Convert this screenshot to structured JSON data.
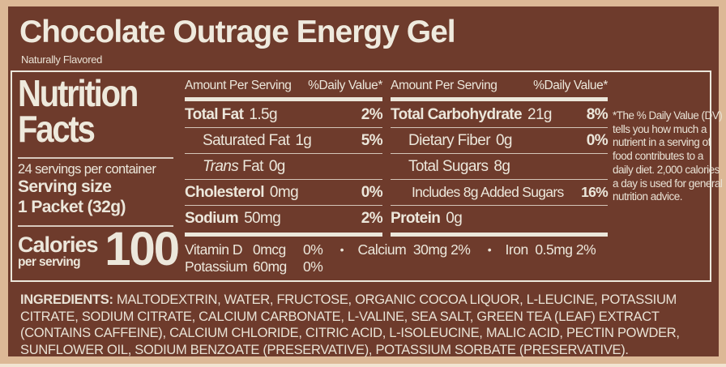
{
  "colors": {
    "background_tan": "#dcb896",
    "label_brown": "#6e3b2c",
    "text_cream": "#ece7db"
  },
  "header": {
    "title": "Chocolate Outrage Energy Gel",
    "subtitle": "Naturally Flavored"
  },
  "panel": {
    "title_line1": "Nutrition",
    "title_line2": "Facts",
    "servings": "24 servings per container",
    "serving_size_label": "Serving size",
    "serving_size_value": "1 Packet (32g)",
    "calories_label": "Calories",
    "calories_sublabel": "per serving",
    "calories_value": "100"
  },
  "cols": {
    "header_amount": "Amount Per Serving",
    "header_dv": "%Daily Value*",
    "mid": {
      "rows": [
        {
          "name": "Total Fat",
          "amount": "1.5g",
          "dv": "2%"
        },
        {
          "name": "Saturated Fat",
          "amount": "1g",
          "dv": "5%"
        },
        {
          "name_italic": "Trans",
          "name": "Fat",
          "amount": "0g",
          "dv": ""
        },
        {
          "name": "Cholesterol",
          "amount": "0mg",
          "dv": "0%"
        },
        {
          "name": "Sodium",
          "amount": "50mg",
          "dv": "2%"
        }
      ]
    },
    "right": {
      "rows": [
        {
          "name": "Total Carbohydrate",
          "amount": "21g",
          "dv": "8%"
        },
        {
          "name": "Dietary Fiber",
          "amount": "0g",
          "dv": "0%"
        },
        {
          "name": "Total Sugars",
          "amount": "8g",
          "dv": ""
        },
        {
          "name": "Includes 8g Added Sugars",
          "amount": "",
          "dv": "16%"
        },
        {
          "name": "Protein",
          "amount": "0g",
          "dv": ""
        }
      ]
    }
  },
  "micro": {
    "bullet": "•",
    "line1": [
      {
        "label": "Vitamin D",
        "amount": "0mcg",
        "dv": "0%"
      },
      {
        "label": "Calcium",
        "amount": "30mg",
        "dv": "2%"
      },
      {
        "label": "Iron",
        "amount": "0.5mg",
        "dv": "2%"
      }
    ],
    "line2": [
      {
        "label": "Potassium",
        "amount": "60mg",
        "dv": "0%"
      }
    ]
  },
  "footnote": {
    "text": "*The % Daily Value (DV) tells you how much a nutrient in a serving of food contributes to a daily diet. 2,000 calories a day is used for general nutrition advice."
  },
  "ingredients": {
    "label": "INGREDIENTS:",
    "text": "MALTODEXTRIN, WATER, FRUCTOSE, ORGANIC COCOA LIQUOR, L-LEUCINE, POTASSIUM CITRATE, SODIUM CITRATE, CALCIUM CARBONATE, L-VALINE, SEA SALT, GREEN TEA (LEAF) EXTRACT (CONTAINS CAFFEINE), CALCIUM CHLORIDE, CITRIC ACID, L-ISOLEUCINE, MALIC ACID, PECTIN POWDER, SUNFLOWER OIL, SODIUM BENZOATE (PRESERVATIVE), POTASSIUM SORBATE (PRESERVATIVE)."
  }
}
